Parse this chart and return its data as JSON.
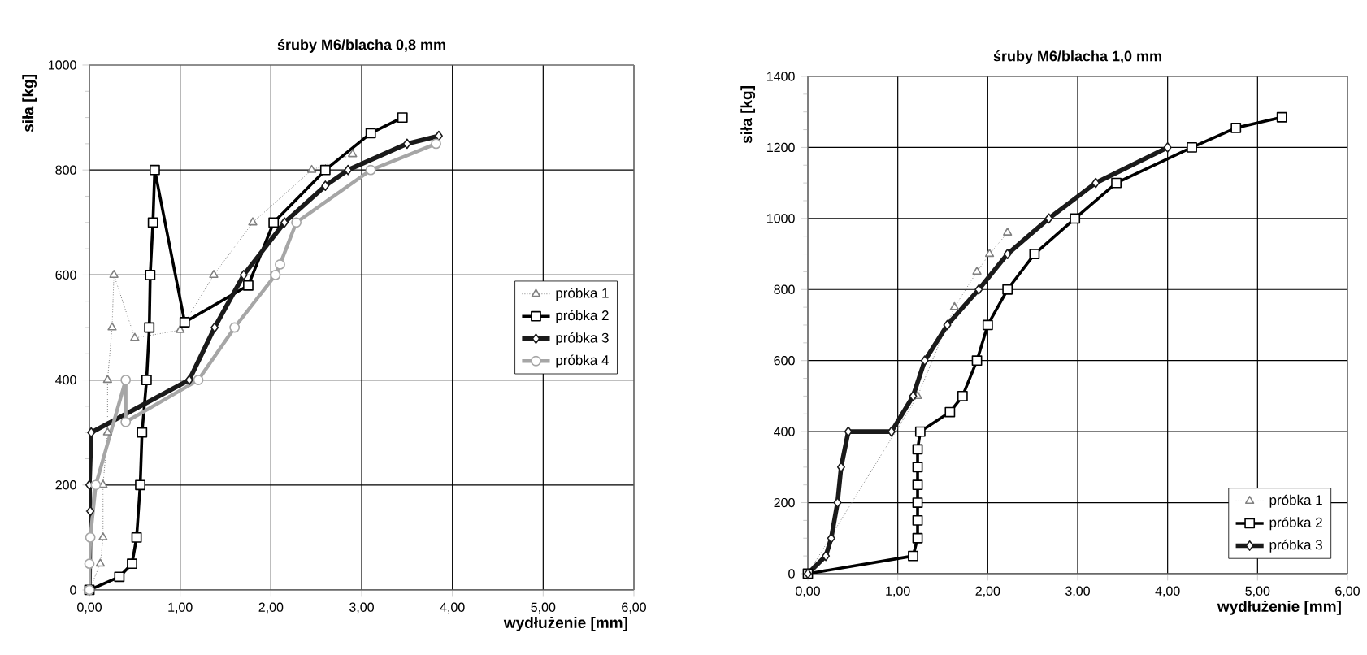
{
  "chart_data": [
    {
      "type": "line",
      "title": "śruby M6/blacha 0,8 mm",
      "xlabel": "wydłużenie [mm]",
      "ylabel": "siła [kg]",
      "xlim": [
        0,
        6
      ],
      "ylim": [
        0,
        1000
      ],
      "xticks": [
        {
          "value": 0,
          "label": "0,00"
        },
        {
          "value": 1,
          "label": "1,00"
        },
        {
          "value": 2,
          "label": "2,00"
        },
        {
          "value": 3,
          "label": "3,00"
        },
        {
          "value": 4,
          "label": "4,00"
        },
        {
          "value": 5,
          "label": "5,00"
        },
        {
          "value": 6,
          "label": "6,00"
        }
      ],
      "yticks": [
        0,
        200,
        400,
        600,
        800,
        1000
      ],
      "grid": true,
      "legend": "right",
      "series": [
        {
          "name": "próbka 1",
          "color": "#808080",
          "marker": "triangle",
          "line_style": "dotted",
          "x": [
            0,
            0.12,
            0.15,
            0.15,
            0.2,
            0.2,
            0.25,
            0.27,
            0.5,
            1.0,
            1.37,
            1.8,
            2.45,
            2.9
          ],
          "values": [
            0,
            50,
            100,
            200,
            300,
            400,
            500,
            600,
            480,
            495,
            600,
            700,
            800,
            830
          ]
        },
        {
          "name": "próbka 2",
          "color": "#000000",
          "marker": "square",
          "line_style": "solid",
          "x": [
            0,
            0.33,
            0.47,
            0.52,
            0.56,
            0.58,
            0.63,
            0.66,
            0.67,
            0.7,
            0.72,
            1.05,
            1.75,
            2.03,
            2.6,
            3.1,
            3.45
          ],
          "values": [
            0,
            25,
            50,
            100,
            200,
            300,
            400,
            500,
            600,
            700,
            800,
            510,
            580,
            700,
            800,
            870,
            900
          ]
        },
        {
          "name": "próbka 3",
          "color": "#1a1a1a",
          "marker": "diamond",
          "line_style": "solid",
          "x": [
            0,
            0.01,
            0,
            0.02,
            1.1,
            1.38,
            1.7,
            2.15,
            2.6,
            2.85,
            3.5,
            3.85
          ],
          "values": [
            0,
            150,
            200,
            300,
            400,
            500,
            600,
            700,
            770,
            800,
            850,
            865
          ]
        },
        {
          "name": "próbka 4",
          "color": "#a6a6a6",
          "marker": "circle",
          "line_style": "solid",
          "x": [
            0,
            0,
            0.01,
            0.07,
            0.4,
            0.4,
            1.2,
            1.6,
            2.05,
            2.1,
            2.28,
            3.1,
            3.82
          ],
          "values": [
            0,
            50,
            100,
            200,
            400,
            320,
            400,
            500,
            600,
            620,
            700,
            800,
            850
          ]
        }
      ]
    },
    {
      "type": "line",
      "title": "śruby M6/blacha 1,0 mm",
      "xlabel": "wydłużenie [mm]",
      "ylabel": "siła [kg]",
      "xlim": [
        0,
        6
      ],
      "ylim": [
        0,
        1400
      ],
      "xticks": [
        {
          "value": 0,
          "label": "0,00"
        },
        {
          "value": 1,
          "label": "1,00"
        },
        {
          "value": 2,
          "label": "2,00"
        },
        {
          "value": 3,
          "label": "3,00"
        },
        {
          "value": 4,
          "label": "4,00"
        },
        {
          "value": 5,
          "label": "5,00"
        },
        {
          "value": 6,
          "label": "6,00"
        }
      ],
      "yticks": [
        0,
        200,
        400,
        600,
        800,
        1000,
        1200,
        1400
      ],
      "grid": true,
      "legend": "bottom right",
      "series": [
        {
          "name": "próbka 1",
          "color": "#808080",
          "marker": "triangle",
          "line_style": "dotted",
          "x": [
            0,
            0.95,
            1.22,
            1.32,
            1.55,
            1.63,
            1.88,
            2.02,
            2.22
          ],
          "values": [
            0,
            null,
            500,
            null,
            null,
            750,
            850,
            900,
            960
          ]
        },
        {
          "name": "próbka 2",
          "color": "#000000",
          "marker": "square",
          "line_style": "solid",
          "x": [
            0,
            1.17,
            1.22,
            1.22,
            1.22,
            1.22,
            1.22,
            1.22,
            1.25,
            1.58,
            1.72,
            1.88,
            2.0,
            2.22,
            2.52,
            2.97,
            3.43,
            4.27,
            4.76,
            5.27
          ],
          "values": [
            0,
            50,
            100,
            150,
            200,
            250,
            300,
            350,
            400,
            455,
            500,
            600,
            700,
            800,
            900,
            1000,
            1100,
            1200,
            1255,
            1285
          ]
        },
        {
          "name": "próbka 3",
          "color": "#1a1a1a",
          "marker": "diamond",
          "line_style": "solid",
          "x": [
            0,
            0.2,
            0.26,
            0.33,
            0.37,
            0.45,
            0.93,
            1.17,
            1.3,
            1.55,
            1.9,
            2.22,
            2.68,
            3.2,
            4.0
          ],
          "values": [
            0,
            50,
            100,
            200,
            300,
            400,
            400,
            500,
            600,
            700,
            800,
            900,
            1000,
            1100,
            1200
          ]
        }
      ]
    }
  ]
}
